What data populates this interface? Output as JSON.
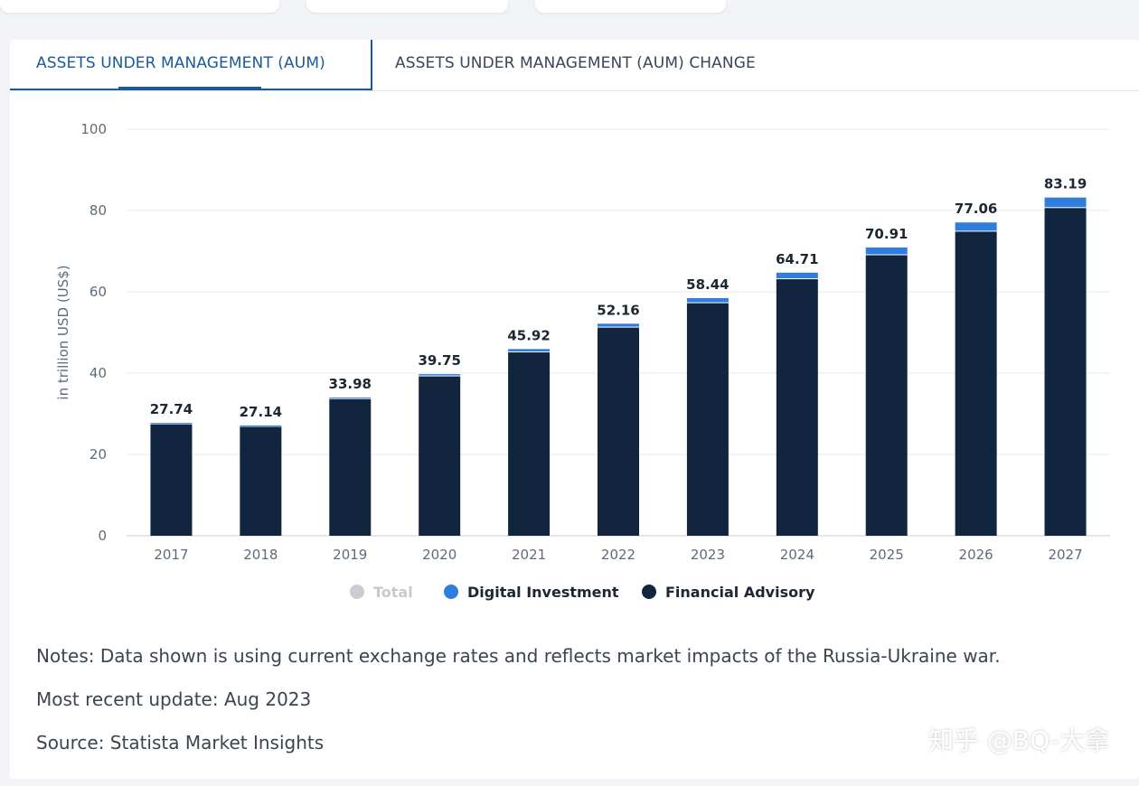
{
  "tabs": [
    {
      "label": "ASSETS UNDER MANAGEMENT (AUM)",
      "active": true
    },
    {
      "label": "ASSETS UNDER MANAGEMENT (AUM) CHANGE",
      "active": false
    }
  ],
  "colors": {
    "financial_advisory": "#12253f",
    "digital_investment": "#2f7ddc",
    "total": "#c9ccd1",
    "active_tab": "#1a5a9a"
  },
  "chart_data": {
    "type": "bar",
    "stacked": true,
    "categories": [
      "2017",
      "2018",
      "2019",
      "2020",
      "2021",
      "2022",
      "2023",
      "2024",
      "2025",
      "2026",
      "2027"
    ],
    "series": [
      {
        "name": "Financial Advisory",
        "values": [
          27.4,
          26.8,
          33.6,
          39.2,
          45.1,
          51.2,
          57.2,
          63.1,
          69.0,
          74.8,
          80.6
        ]
      },
      {
        "name": "Digital Investment",
        "values": [
          0.34,
          0.34,
          0.38,
          0.55,
          0.82,
          0.96,
          1.24,
          1.61,
          1.91,
          2.26,
          2.59
        ]
      }
    ],
    "totals": [
      "27.74",
      "27.14",
      "33.98",
      "39.75",
      "45.92",
      "52.16",
      "58.44",
      "64.71",
      "70.91",
      "77.06",
      "83.19"
    ],
    "ylabel": "in trillion USD (US$)",
    "ylim": [
      0,
      100
    ],
    "yticks": [
      "0",
      "20",
      "40",
      "60",
      "80",
      "100"
    ],
    "grid": true,
    "legend_position": "bottom"
  },
  "legend": [
    {
      "label": "Total",
      "color": "#c9ccd1",
      "muted": true
    },
    {
      "label": "Digital Investment",
      "color": "#2f7ddc",
      "muted": false
    },
    {
      "label": "Financial Advisory",
      "color": "#12253f",
      "muted": false
    }
  ],
  "notes": {
    "notes_text": "Notes: Data shown is using current exchange rates and reflects market impacts of the Russia-Ukraine war.",
    "update_text": "Most recent update: Aug 2023",
    "source_text": "Source: Statista Market Insights"
  },
  "watermark": "知乎 @BQ-大拿"
}
